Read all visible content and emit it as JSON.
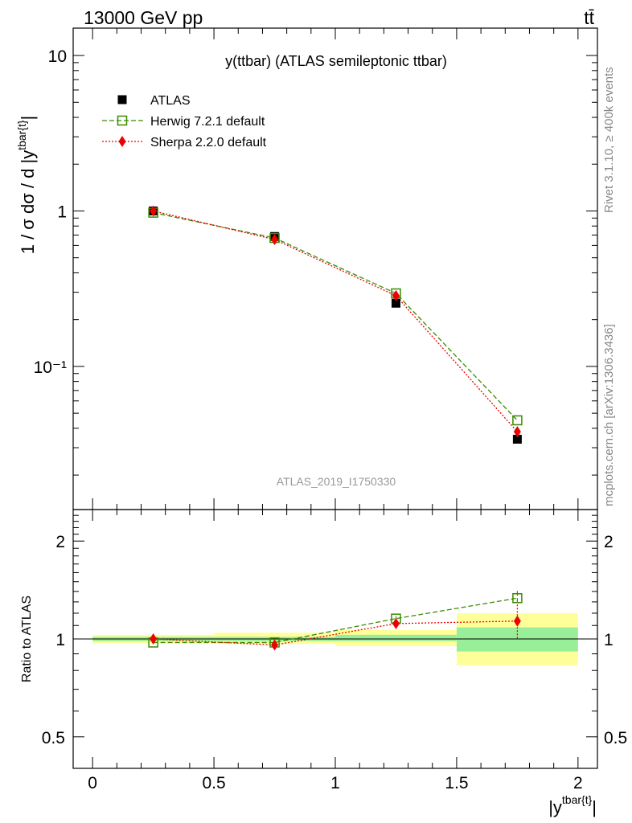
{
  "header": {
    "energy_label": "13000 GeV pp",
    "process_label": "tt̄",
    "side_label_upper": "Rivet 3.1.10, ≥ 400k events",
    "side_label_lower": "mcplots.cern.ch [arXiv:1306.3436]"
  },
  "chart_data": [
    {
      "type": "line",
      "panel": "main",
      "title": "y(ttbar) (ATLAS semileptonic ttbar)",
      "watermark": "ATLAS_2019_I1750330",
      "ylabel": "1 / σ dσ / d |y^tbar{t}|",
      "yscale": "log",
      "ylim": [
        0.012,
        15
      ],
      "xlim": [
        -0.08,
        2.08
      ],
      "yticks": [
        {
          "value": 10,
          "label": "10"
        },
        {
          "value": 1,
          "label": "1"
        },
        {
          "value": 0.1,
          "label": "10⁻¹"
        }
      ],
      "x": [
        0.25,
        0.75,
        1.25,
        1.75
      ],
      "series": [
        {
          "name": "ATLAS",
          "style": "square-filled",
          "color": "#000000",
          "values": [
            1.0,
            0.685,
            0.255,
            0.034
          ]
        },
        {
          "name": "Herwig 7.2.1 default",
          "style": "square-open-dashed",
          "color": "#3a8a00",
          "values": [
            0.975,
            0.67,
            0.295,
            0.045
          ]
        },
        {
          "name": "Sherpa 2.2.0 default",
          "style": "diamond-dotted",
          "color": "#ee0000",
          "values": [
            1.0,
            0.655,
            0.285,
            0.038
          ]
        }
      ],
      "legend_position": "top-left"
    },
    {
      "type": "line",
      "panel": "ratio",
      "ylabel": "Ratio to ATLAS",
      "xlabel": "|y^tbar{t}|",
      "yscale": "log",
      "ylim": [
        0.4,
        2.5
      ],
      "xlim": [
        -0.08,
        2.08
      ],
      "yticks": [
        {
          "value": 2,
          "label": "2"
        },
        {
          "value": 1,
          "label": "1"
        },
        {
          "value": 0.5,
          "label": "0.5"
        }
      ],
      "xticks": [
        {
          "value": 0,
          "label": "0"
        },
        {
          "value": 0.5,
          "label": "0.5"
        },
        {
          "value": 1,
          "label": "1"
        },
        {
          "value": 1.5,
          "label": "1.5"
        },
        {
          "value": 2,
          "label": "2"
        }
      ],
      "bands": [
        {
          "xlo": 0,
          "xhi": 0.5,
          "stat": [
            0.985,
            1.015
          ],
          "total": [
            0.97,
            1.03
          ]
        },
        {
          "xlo": 0.5,
          "xhi": 1.0,
          "stat": [
            0.985,
            1.015
          ],
          "total": [
            0.965,
            1.045
          ]
        },
        {
          "xlo": 1.0,
          "xhi": 1.5,
          "stat": [
            0.985,
            1.03
          ],
          "total": [
            0.95,
            1.065
          ]
        },
        {
          "xlo": 1.5,
          "xhi": 2.0,
          "stat": [
            0.915,
            1.085
          ],
          "total": [
            0.83,
            1.2
          ]
        }
      ],
      "band_colors": {
        "stat": "#99ee99",
        "total": "#ffff99"
      },
      "x": [
        0.25,
        0.75,
        1.25,
        1.75
      ],
      "series": [
        {
          "name": "Herwig 7.2.1 default",
          "style": "square-open-dashed",
          "color": "#3a8a00",
          "values": [
            0.975,
            0.975,
            1.155,
            1.335
          ],
          "err": [
            0.005,
            0.01,
            0.02,
            0.07
          ]
        },
        {
          "name": "Sherpa 2.2.0 default",
          "style": "diamond-dotted",
          "color": "#ee0000",
          "values": [
            1.0,
            0.958,
            1.115,
            1.135
          ],
          "err": [
            0.01,
            0.02,
            0.04,
            0.14
          ]
        }
      ]
    }
  ]
}
